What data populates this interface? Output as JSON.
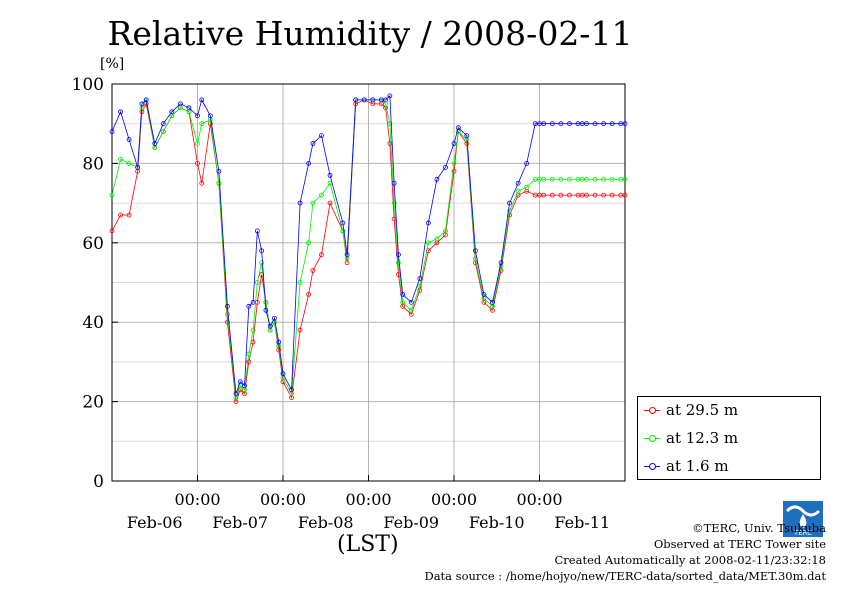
{
  "page": {
    "title": "Relative Humidity / 2008-02-11",
    "y_unit": "[%]",
    "x_axis_label": "(LST)",
    "credits": {
      "copyright": "©TERC, Univ. Tsukuba",
      "observed": "Observed at TERC Tower site",
      "created": "Created Automatically at 2008-02-11/23:32:18",
      "source": "Data source : /home/hojyo/new/TERC-data/sorted_data/MET.30m.dat"
    },
    "logo_text": "TERC"
  },
  "colors": {
    "s29": "#ff0000",
    "s12": "#00ee00",
    "s1": "#0000ff",
    "grid": "#b4b4b4"
  },
  "chart_data": {
    "type": "line",
    "title": "Relative Humidity / 2008-02-11",
    "ylabel": "[%]",
    "xlabel": "(LST)",
    "ylim": [
      0,
      100
    ],
    "yticks": [
      0,
      20,
      40,
      60,
      80,
      100
    ],
    "xlim_days": [
      0,
      6
    ],
    "x_tick_labels": [
      "00:00",
      "00:00",
      "00:00",
      "00:00",
      "00:00"
    ],
    "x_date_labels": [
      "Feb-06",
      "Feb-07",
      "Feb-08",
      "Feb-09",
      "Feb-10",
      "Feb-11"
    ],
    "grid": true,
    "legend_position": "bottom-right outside",
    "series": [
      {
        "name": "at 29.5 m",
        "color": "#ff0000",
        "x_days": [
          0.0,
          0.1,
          0.2,
          0.3,
          0.35,
          0.4,
          0.5,
          0.6,
          0.7,
          0.8,
          0.9,
          1.0,
          1.05,
          1.15,
          1.25,
          1.35,
          1.45,
          1.5,
          1.55,
          1.6,
          1.65,
          1.7,
          1.75,
          1.8,
          1.85,
          1.9,
          1.95,
          2.0,
          2.1,
          2.2,
          2.3,
          2.35,
          2.45,
          2.55,
          2.7,
          2.75,
          2.85,
          2.95,
          3.05,
          3.15,
          3.2,
          3.25,
          3.3,
          3.35,
          3.4,
          3.5,
          3.6,
          3.7,
          3.8,
          3.9,
          4.0,
          4.05,
          4.15,
          4.25,
          4.35,
          4.45,
          4.55,
          4.65,
          4.75,
          4.85,
          4.95,
          5.0,
          5.05,
          5.15,
          5.25,
          5.35,
          5.45,
          5.5,
          5.55,
          5.65,
          5.75,
          5.85,
          5.95,
          6.0
        ],
        "values": [
          63,
          67,
          67,
          78,
          93,
          95,
          84,
          88,
          92,
          94,
          93,
          80,
          75,
          90,
          75,
          40,
          20,
          23,
          22,
          30,
          35,
          45,
          52,
          45,
          38,
          40,
          33,
          25,
          21,
          38,
          47,
          53,
          57,
          70,
          63,
          55,
          95,
          96,
          95,
          95,
          94,
          85,
          66,
          52,
          44,
          42,
          48,
          58,
          60,
          62,
          78,
          88,
          85,
          55,
          45,
          43,
          53,
          67,
          72,
          73,
          72,
          72,
          72,
          72,
          72,
          72,
          72,
          72,
          72,
          72,
          72,
          72,
          72,
          72
        ]
      },
      {
        "name": "at 12.3 m",
        "color": "#00ee00",
        "x_days": [
          0.0,
          0.1,
          0.2,
          0.3,
          0.35,
          0.4,
          0.5,
          0.6,
          0.7,
          0.8,
          0.9,
          1.0,
          1.05,
          1.15,
          1.25,
          1.35,
          1.45,
          1.5,
          1.55,
          1.6,
          1.65,
          1.7,
          1.75,
          1.8,
          1.85,
          1.9,
          1.95,
          2.0,
          2.1,
          2.2,
          2.3,
          2.35,
          2.45,
          2.55,
          2.7,
          2.75,
          2.85,
          2.95,
          3.05,
          3.15,
          3.2,
          3.25,
          3.3,
          3.35,
          3.4,
          3.5,
          3.6,
          3.7,
          3.8,
          3.9,
          4.0,
          4.05,
          4.15,
          4.25,
          4.35,
          4.45,
          4.55,
          4.65,
          4.75,
          4.85,
          4.95,
          5.0,
          5.05,
          5.15,
          5.25,
          5.35,
          5.45,
          5.5,
          5.55,
          5.65,
          5.75,
          5.85,
          5.95,
          6.0
        ],
        "values": [
          72,
          81,
          80,
          79,
          94,
          96,
          84,
          88,
          92,
          94,
          93,
          85,
          90,
          91,
          75,
          42,
          21,
          24,
          23,
          32,
          38,
          50,
          55,
          45,
          38,
          40,
          34,
          26,
          22,
          50,
          60,
          70,
          72,
          75,
          63,
          56,
          96,
          96,
          96,
          96,
          95,
          90,
          70,
          55,
          45,
          43,
          49,
          60,
          61,
          63,
          80,
          88,
          86,
          56,
          46,
          44,
          54,
          68,
          73,
          74,
          76,
          76,
          76,
          76,
          76,
          76,
          76,
          76,
          76,
          76,
          76,
          76,
          76,
          76
        ]
      },
      {
        "name": "at 1.6 m",
        "color": "#0000ff",
        "x_days": [
          0.0,
          0.1,
          0.2,
          0.3,
          0.35,
          0.4,
          0.5,
          0.6,
          0.7,
          0.8,
          0.9,
          1.0,
          1.05,
          1.15,
          1.25,
          1.35,
          1.45,
          1.5,
          1.55,
          1.6,
          1.65,
          1.7,
          1.75,
          1.8,
          1.85,
          1.9,
          1.95,
          2.0,
          2.1,
          2.2,
          2.3,
          2.35,
          2.45,
          2.55,
          2.7,
          2.75,
          2.85,
          2.95,
          3.05,
          3.15,
          3.2,
          3.25,
          3.3,
          3.35,
          3.4,
          3.5,
          3.6,
          3.7,
          3.8,
          3.9,
          4.0,
          4.05,
          4.15,
          4.25,
          4.35,
          4.45,
          4.55,
          4.65,
          4.75,
          4.85,
          4.95,
          5.0,
          5.05,
          5.15,
          5.25,
          5.35,
          5.45,
          5.5,
          5.55,
          5.65,
          5.75,
          5.85,
          5.95,
          6.0
        ],
        "values": [
          88,
          93,
          86,
          79,
          95,
          96,
          85,
          90,
          93,
          95,
          94,
          92,
          96,
          92,
          78,
          44,
          22,
          25,
          24,
          44,
          45,
          63,
          58,
          43,
          39,
          41,
          35,
          27,
          23,
          70,
          80,
          85,
          87,
          77,
          65,
          57,
          96,
          96,
          96,
          96,
          96,
          97,
          75,
          57,
          47,
          45,
          51,
          65,
          76,
          79,
          85,
          89,
          87,
          58,
          47,
          45,
          55,
          70,
          75,
          80,
          90,
          90,
          90,
          90,
          90,
          90,
          90,
          90,
          90,
          90,
          90,
          90,
          90,
          90
        ]
      }
    ]
  }
}
